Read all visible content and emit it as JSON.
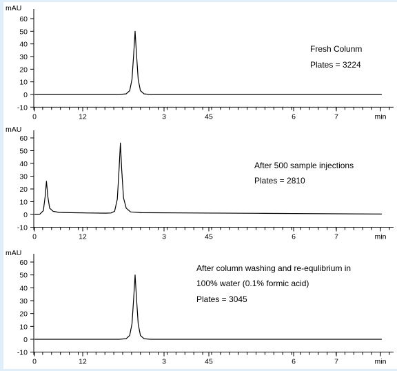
{
  "background_color": "#dfeef9",
  "line_color": "#000000",
  "chart_data": [
    {
      "type": "line",
      "ylabel": "mAU",
      "xlabel": "min",
      "ylim": [
        -10,
        60
      ],
      "y_ticks": [
        "-10",
        "0",
        "10",
        "20",
        "30",
        "40",
        "50",
        "60"
      ],
      "x_ticks": [
        "0",
        "12",
        "3",
        "45",
        "6",
        "7",
        "min"
      ],
      "annotations": [
        "Fresh Colunm",
        "Plates = 3224"
      ],
      "series": [
        {
          "points": [
            [
              0,
              0
            ],
            [
              0.8,
              0
            ],
            [
              1.9,
              0
            ],
            [
              2.06,
              0.5
            ],
            [
              2.14,
              3
            ],
            [
              2.19,
              12
            ],
            [
              2.23,
              33
            ],
            [
              2.26,
              50
            ],
            [
              2.29,
              33
            ],
            [
              2.33,
              12
            ],
            [
              2.38,
              3
            ],
            [
              2.46,
              0.5
            ],
            [
              2.6,
              0
            ],
            [
              3.5,
              0
            ],
            [
              5.0,
              0
            ],
            [
              7.8,
              0
            ]
          ]
        }
      ]
    },
    {
      "type": "line",
      "ylabel": "mAU",
      "xlabel": "min",
      "ylim": [
        -10,
        60
      ],
      "y_ticks": [
        "-10",
        "0",
        "10",
        "20",
        "30",
        "40",
        "50",
        "60"
      ],
      "x_ticks": [
        "0",
        "12",
        "3",
        "45",
        "6",
        "7",
        "min"
      ],
      "annotations": [
        "After 500 sample injections",
        "Plates = 2810"
      ],
      "series": [
        {
          "points": [
            [
              0,
              0
            ],
            [
              0.12,
              0.2
            ],
            [
              0.2,
              3
            ],
            [
              0.24,
              14
            ],
            [
              0.27,
              26
            ],
            [
              0.3,
              14
            ],
            [
              0.34,
              5
            ],
            [
              0.42,
              2.5
            ],
            [
              0.55,
              1.6
            ],
            [
              0.8,
              1.4
            ],
            [
              1.2,
              1.2
            ],
            [
              1.6,
              1
            ],
            [
              1.72,
              1.2
            ],
            [
              1.8,
              2.5
            ],
            [
              1.86,
              12
            ],
            [
              1.9,
              35
            ],
            [
              1.93,
              56
            ],
            [
              1.96,
              35
            ],
            [
              2.0,
              13
            ],
            [
              2.06,
              5
            ],
            [
              2.16,
              2
            ],
            [
              2.4,
              1.4
            ],
            [
              3.5,
              1.2
            ],
            [
              5.0,
              0.9
            ],
            [
              6.5,
              0.6
            ],
            [
              7.8,
              0.3
            ]
          ]
        }
      ]
    },
    {
      "type": "line",
      "ylabel": "mAU",
      "xlabel": "min",
      "ylim": [
        -10,
        60
      ],
      "y_ticks": [
        "-10",
        "0",
        "10",
        "20",
        "30",
        "40",
        "50",
        "60"
      ],
      "x_ticks": [
        "0",
        "12",
        "3",
        "45",
        "6",
        "7",
        "min"
      ],
      "annotations": [
        "After column washing and re-equlibrium in",
        "100% water (0.1% formic acid)",
        "Plates  = 3045"
      ],
      "series": [
        {
          "points": [
            [
              0,
              0
            ],
            [
              0.8,
              0
            ],
            [
              1.9,
              0
            ],
            [
              2.06,
              0.5
            ],
            [
              2.14,
              3
            ],
            [
              2.19,
              12
            ],
            [
              2.23,
              33
            ],
            [
              2.26,
              50
            ],
            [
              2.29,
              33
            ],
            [
              2.33,
              12
            ],
            [
              2.38,
              3
            ],
            [
              2.46,
              0.5
            ],
            [
              2.6,
              0
            ],
            [
              3.5,
              0
            ],
            [
              5.0,
              0
            ],
            [
              7.8,
              0
            ]
          ]
        }
      ]
    }
  ]
}
